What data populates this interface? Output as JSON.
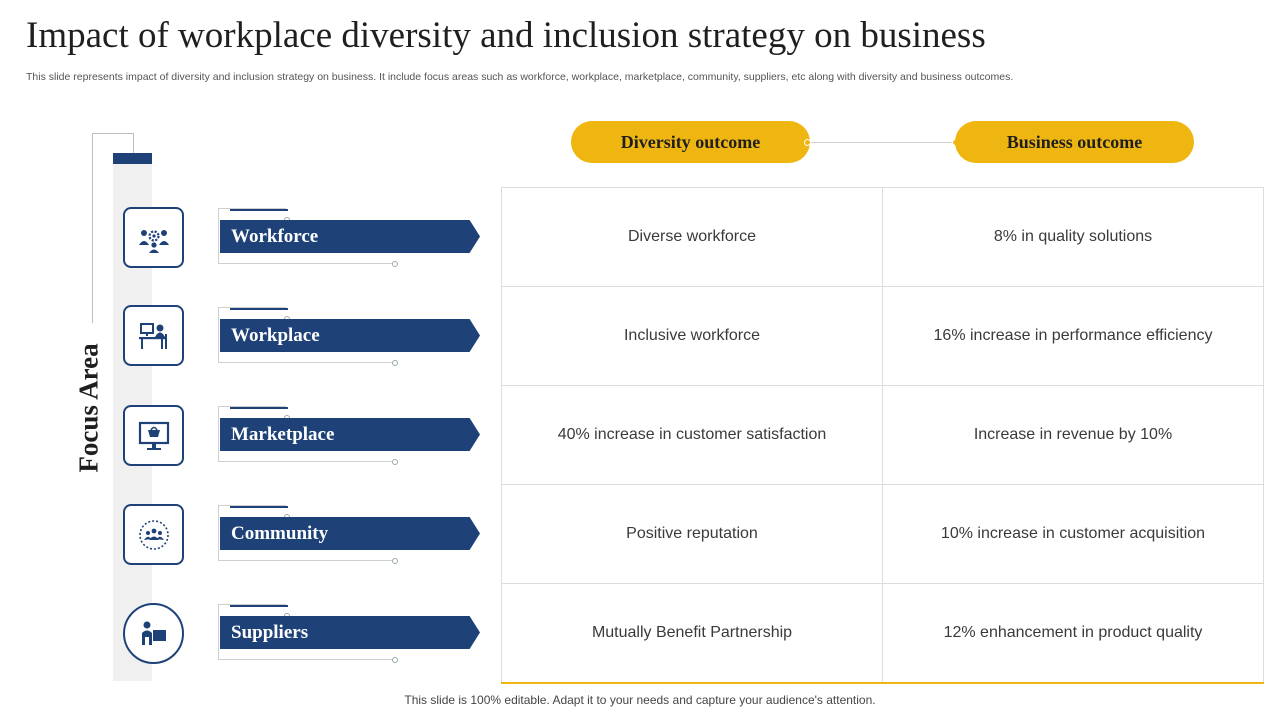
{
  "title": "Impact of workplace diversity and inclusion strategy on business",
  "subtitle": "This slide represents impact of diversity and inclusion strategy on business. It include focus areas such as workforce, workplace, marketplace, community, suppliers, etc along with diversity and business outcomes.",
  "focus_label": "Focus Area",
  "headers": {
    "diversity": "Diversity outcome",
    "business": "Business outcome"
  },
  "rows": [
    {
      "area": "Workforce",
      "icon": "team-gear-icon",
      "diversity": "Diverse workforce",
      "business": "8% in quality solutions"
    },
    {
      "area": "Workplace",
      "icon": "office-desk-icon",
      "diversity": "Inclusive  workforce",
      "business": "16% increase in performance efficiency"
    },
    {
      "area": "Marketplace",
      "icon": "online-shop-icon",
      "diversity": "40% increase in customer satisfaction",
      "business": "Increase  in revenue  by 10%"
    },
    {
      "area": "Community",
      "icon": "community-circle-icon",
      "diversity": "Positive reputation",
      "business": "10% increase in customer acquisition"
    },
    {
      "area": "Suppliers",
      "icon": "supplier-person-icon",
      "diversity": "Mutually  Benefit Partnership",
      "business": "12% enhancement  in product quality"
    }
  ],
  "footer": "This slide is 100% editable. Adapt it to your needs and capture your audience's attention.",
  "colors": {
    "navy": "#1e4278",
    "gold": "#efb612"
  }
}
